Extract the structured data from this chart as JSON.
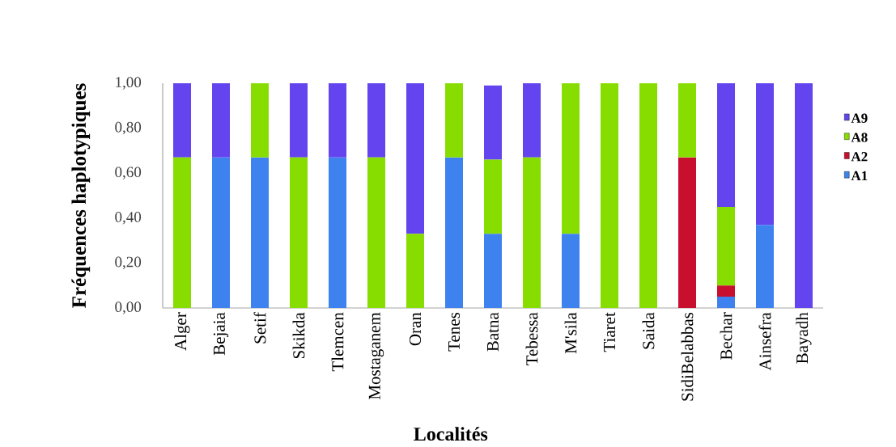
{
  "chart_data": {
    "type": "bar",
    "stacked": true,
    "categories": [
      "Alger",
      "Bejaia",
      "Setif",
      "Skikda",
      "Tlemcen",
      "Mostaganem",
      "Oran",
      "Tenes",
      "Batna",
      "Tebessa",
      "M'sila",
      "Tiaret",
      "Saida",
      "SidiBelabbas",
      "Bechar",
      "Ainsefra",
      "Bayadh"
    ],
    "series": [
      {
        "name": "A1",
        "color": "#3e82f0",
        "values": [
          0,
          0.67,
          0.67,
          0,
          0.67,
          0,
          0,
          0.67,
          0.33,
          0,
          0.33,
          0,
          0,
          0,
          0.05,
          0.37,
          0
        ]
      },
      {
        "name": "A2",
        "color": "#c8102e",
        "values": [
          0,
          0,
          0,
          0,
          0,
          0,
          0,
          0,
          0,
          0,
          0,
          0,
          0,
          0.67,
          0.05,
          0,
          0
        ]
      },
      {
        "name": "A8",
        "color": "#88dd00",
        "values": [
          0.67,
          0,
          0.33,
          0.67,
          0,
          0.67,
          0.33,
          0.33,
          0.33,
          0.67,
          0.67,
          1,
          1,
          0.33,
          0.35,
          0,
          0
        ]
      },
      {
        "name": "A9",
        "color": "#6344ee",
        "values": [
          0.33,
          0.33,
          0,
          0.33,
          0.33,
          0.33,
          0.67,
          0,
          0.33,
          0.33,
          0,
          0,
          0,
          0,
          0.55,
          0.63,
          1
        ]
      }
    ],
    "ylim": [
      0,
      1
    ],
    "yticks": [
      {
        "value": 0,
        "label": "0,00"
      },
      {
        "value": 0.2,
        "label": "0,20"
      },
      {
        "value": 0.4,
        "label": "0,40"
      },
      {
        "value": 0.6,
        "label": "0,60"
      },
      {
        "value": 0.8,
        "label": "0,80"
      },
      {
        "value": 1,
        "label": "1,00"
      }
    ],
    "xlabel": "Localités",
    "ylabel": "Fréquences haplotypiques",
    "legend": "right"
  }
}
